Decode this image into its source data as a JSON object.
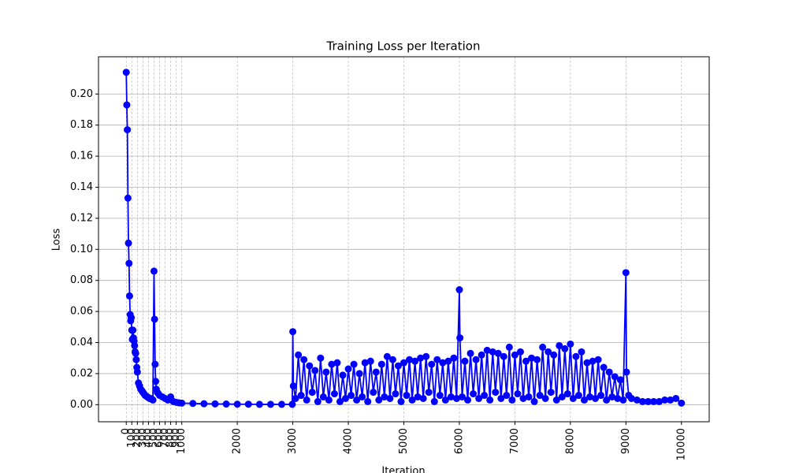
{
  "chart_data": {
    "type": "line",
    "title": "Training Loss per Iteration",
    "x_label": "Iteration",
    "y_label": "Loss",
    "color": "#0000ff",
    "grid": true,
    "xlim": [
      -500,
      10500
    ],
    "ylim": [
      -0.011,
      0.224
    ],
    "xticks": [
      0,
      100,
      200,
      300,
      400,
      500,
      600,
      700,
      800,
      900,
      1000,
      2000,
      3000,
      4000,
      5000,
      6000,
      7000,
      8000,
      9000,
      10000
    ],
    "yticks": [
      {
        "value": 0,
        "label": "0.00"
      },
      {
        "value": 0.02,
        "label": "0.02"
      },
      {
        "value": 0.04,
        "label": "0.04"
      },
      {
        "value": 0.06,
        "label": "0.06"
      },
      {
        "value": 0.08,
        "label": "0.08"
      },
      {
        "value": 0.1,
        "label": "0.10"
      },
      {
        "value": 0.12,
        "label": "0.12"
      },
      {
        "value": 0.14,
        "label": "0.14"
      },
      {
        "value": 0.16,
        "label": "0.16"
      },
      {
        "value": 0.18,
        "label": "0.18"
      },
      {
        "value": 0.2,
        "label": "0.20"
      }
    ],
    "x": [
      0,
      10,
      20,
      30,
      40,
      50,
      60,
      70,
      80,
      90,
      100,
      110,
      120,
      130,
      140,
      150,
      160,
      170,
      180,
      190,
      200,
      220,
      240,
      260,
      280,
      300,
      320,
      340,
      360,
      380,
      400,
      420,
      440,
      460,
      480,
      500,
      510,
      520,
      530,
      540,
      560,
      580,
      600,
      650,
      700,
      750,
      800,
      850,
      900,
      950,
      1000,
      1200,
      1400,
      1600,
      1800,
      2000,
      2200,
      2400,
      2600,
      2800,
      2990,
      3000,
      3010,
      3050,
      3100,
      3150,
      3200,
      3250,
      3300,
      3350,
      3400,
      3450,
      3500,
      3550,
      3600,
      3650,
      3700,
      3750,
      3800,
      3850,
      3900,
      3950,
      4000,
      4050,
      4100,
      4150,
      4200,
      4250,
      4300,
      4350,
      4400,
      4450,
      4500,
      4550,
      4600,
      4650,
      4700,
      4750,
      4800,
      4850,
      4900,
      4950,
      5000,
      5050,
      5100,
      5150,
      5200,
      5250,
      5300,
      5350,
      5400,
      5450,
      5500,
      5550,
      5600,
      5650,
      5700,
      5750,
      5800,
      5850,
      5900,
      5950,
      6000,
      6010,
      6050,
      6100,
      6150,
      6200,
      6250,
      6300,
      6350,
      6400,
      6450,
      6500,
      6550,
      6600,
      6650,
      6700,
      6750,
      6800,
      6850,
      6900,
      6950,
      7000,
      7050,
      7100,
      7150,
      7200,
      7250,
      7300,
      7350,
      7400,
      7450,
      7500,
      7550,
      7600,
      7650,
      7700,
      7750,
      7800,
      7850,
      7900,
      7950,
      8000,
      8050,
      8100,
      8150,
      8200,
      8250,
      8300,
      8350,
      8400,
      8450,
      8500,
      8550,
      8600,
      8650,
      8700,
      8750,
      8800,
      8850,
      8900,
      8950,
      9000,
      9010,
      9050,
      9100,
      9200,
      9300,
      9400,
      9500,
      9600,
      9700,
      9800,
      9900,
      10000
    ],
    "values": [
      0.214,
      0.193,
      0.177,
      0.133,
      0.104,
      0.091,
      0.07,
      0.058,
      0.054,
      0.056,
      0.048,
      0.042,
      0.048,
      0.043,
      0.041,
      0.038,
      0.034,
      0.033,
      0.029,
      0.024,
      0.021,
      0.014,
      0.012,
      0.01,
      0.009,
      0.008,
      0.007,
      0.006,
      0.0055,
      0.005,
      0.0045,
      0.004,
      0.004,
      0.0035,
      0.003,
      0.086,
      0.055,
      0.026,
      0.015,
      0.01,
      0.008,
      0.007,
      0.006,
      0.005,
      0.004,
      0.003,
      0.005,
      0.002,
      0.0015,
      0.0012,
      0.001,
      0.0008,
      0.0006,
      0.0005,
      0.0004,
      0.0003,
      0.0003,
      0.0002,
      0.0002,
      0.0002,
      0.0002,
      0.047,
      0.012,
      0.004,
      0.032,
      0.006,
      0.029,
      0.003,
      0.025,
      0.008,
      0.022,
      0.002,
      0.03,
      0.005,
      0.021,
      0.003,
      0.026,
      0.007,
      0.027,
      0.002,
      0.019,
      0.004,
      0.023,
      0.006,
      0.026,
      0.003,
      0.02,
      0.005,
      0.027,
      0.002,
      0.028,
      0.008,
      0.021,
      0.003,
      0.026,
      0.005,
      0.031,
      0.004,
      0.029,
      0.007,
      0.025,
      0.002,
      0.027,
      0.006,
      0.029,
      0.003,
      0.028,
      0.005,
      0.03,
      0.004,
      0.031,
      0.008,
      0.026,
      0.002,
      0.029,
      0.006,
      0.027,
      0.003,
      0.028,
      0.005,
      0.03,
      0.004,
      0.074,
      0.043,
      0.005,
      0.028,
      0.003,
      0.033,
      0.007,
      0.029,
      0.004,
      0.032,
      0.006,
      0.035,
      0.003,
      0.034,
      0.008,
      0.033,
      0.004,
      0.031,
      0.006,
      0.037,
      0.003,
      0.032,
      0.007,
      0.034,
      0.004,
      0.028,
      0.005,
      0.03,
      0.002,
      0.029,
      0.006,
      0.037,
      0.004,
      0.034,
      0.008,
      0.032,
      0.003,
      0.038,
      0.005,
      0.036,
      0.007,
      0.039,
      0.004,
      0.031,
      0.006,
      0.034,
      0.003,
      0.027,
      0.005,
      0.028,
      0.004,
      0.029,
      0.006,
      0.024,
      0.003,
      0.021,
      0.005,
      0.018,
      0.004,
      0.016,
      0.003,
      0.085,
      0.021,
      0.006,
      0.004,
      0.003,
      0.002,
      0.002,
      0.002,
      0.002,
      0.003,
      0.003,
      0.004,
      0.001
    ]
  }
}
